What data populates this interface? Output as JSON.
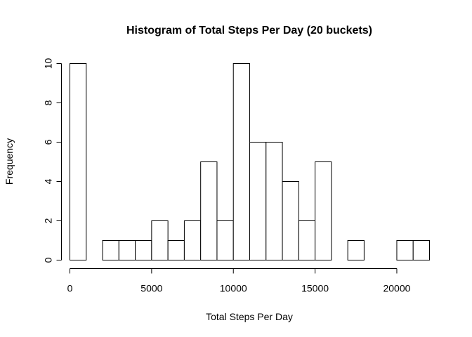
{
  "chart_data": {
    "type": "bar",
    "title": "Histogram of Total Steps Per Day (20 buckets)",
    "xlabel": "Total Steps Per Day",
    "ylabel": "Frequency",
    "bin_edges": [
      0,
      1000,
      2000,
      3000,
      4000,
      5000,
      6000,
      7000,
      8000,
      9000,
      10000,
      11000,
      12000,
      13000,
      14000,
      15000,
      16000,
      17000,
      18000,
      19000,
      20000,
      21000,
      22000
    ],
    "values": [
      10,
      0,
      1,
      1,
      1,
      2,
      1,
      2,
      5,
      2,
      10,
      6,
      6,
      4,
      2,
      5,
      0,
      1,
      0,
      0,
      1,
      1
    ],
    "xlim": [
      0,
      22000
    ],
    "ylim": [
      0,
      10
    ],
    "x_ticks": [
      0,
      5000,
      10000,
      15000,
      20000
    ],
    "y_ticks": [
      0,
      2,
      4,
      6,
      8,
      10
    ],
    "grid": false,
    "bar_fill": "#ffffff",
    "bar_stroke": "#000000"
  }
}
